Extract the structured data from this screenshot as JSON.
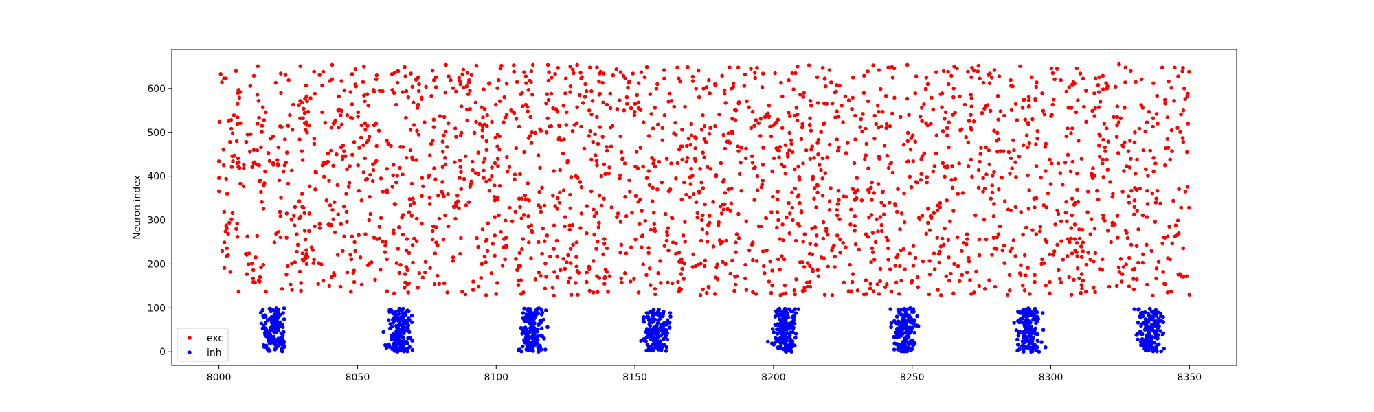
{
  "chart_data": {
    "type": "scatter",
    "title": "",
    "xlabel": "",
    "ylabel": "Neuron index",
    "xlim": [
      7983,
      2.0
    ],
    "xlim_note": "",
    "x_range": [
      7983,
      8367
    ],
    "y_range": [
      -31,
      689
    ],
    "x_ticks": [
      8000,
      8050,
      8100,
      8150,
      8200,
      8250,
      8300,
      8350
    ],
    "y_ticks": [
      0,
      100,
      200,
      300,
      400,
      500,
      600
    ],
    "grid": false,
    "legend_position": "lower-left",
    "exc_index_range": [
      128,
      655
    ],
    "inh_index_range": [
      0,
      99
    ],
    "inh_burst_times": [
      8020,
      8065,
      8113,
      8158,
      8204,
      8247,
      8292,
      8336
    ],
    "exc_time_range": [
      8000,
      8350
    ],
    "series": [
      {
        "name": "exc",
        "color": "#ff0000",
        "marker": "circle"
      },
      {
        "name": "inh",
        "color": "#0000ff",
        "marker": "circle"
      }
    ]
  }
}
